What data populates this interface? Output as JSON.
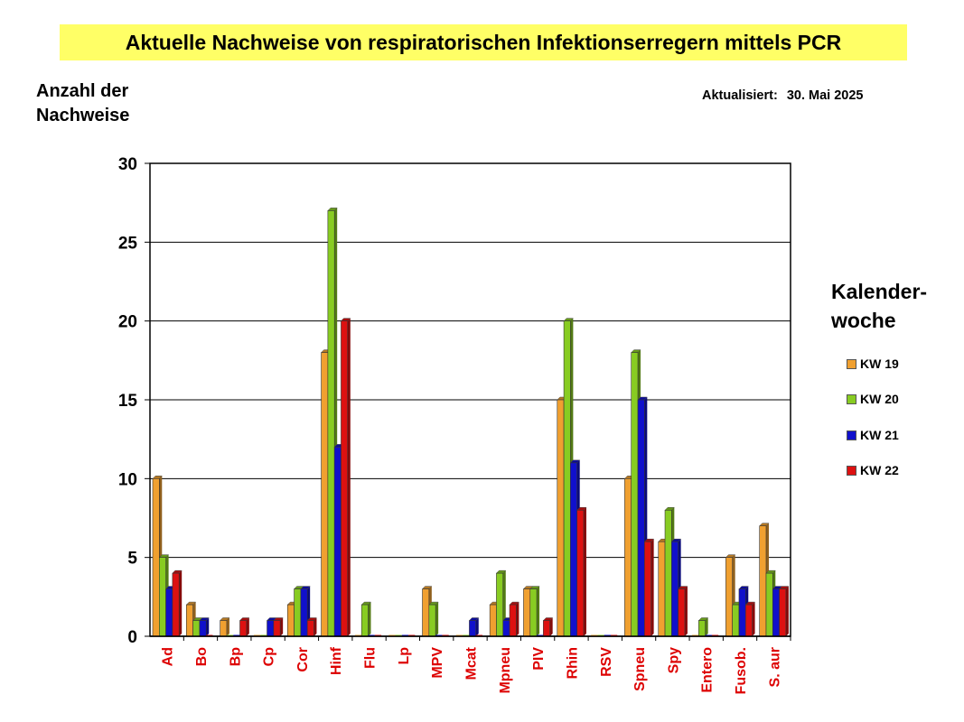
{
  "title": "Aktuelle Nachweise von respiratorischen Infektionserregern mittels PCR",
  "ylabel_line1": "Anzahl der",
  "ylabel_line2": "Nachweise",
  "updated_label": "Aktualisiert:",
  "updated_date": "30. Mai 2025",
  "legend_title_line1": "Kalender-",
  "legend_title_line2": "woche",
  "colors": {
    "KW 19": "#f0a030",
    "KW 20": "#88cc22",
    "KW 21": "#1010cc",
    "KW 22": "#dd1111",
    "category_labels": "#dd0000"
  },
  "chart_data": {
    "type": "bar",
    "categories": [
      "Ad",
      "Bo",
      "Bp",
      "Cp",
      "Cor",
      "Hinf",
      "Flu",
      "Lp",
      "MPV",
      "Mcat",
      "Mpneu",
      "PIV",
      "Rhin",
      "RSV",
      "Spneu",
      "Spy",
      "Entero",
      "Fusob.",
      "S. aur"
    ],
    "series": [
      {
        "name": "KW 19",
        "values": [
          10,
          2,
          1,
          0,
          2,
          18,
          0,
          0,
          3,
          0,
          2,
          3,
          15,
          0,
          10,
          6,
          0,
          5,
          7
        ]
      },
      {
        "name": "KW 20",
        "values": [
          5,
          1,
          0,
          0,
          3,
          27,
          2,
          0,
          2,
          0,
          4,
          3,
          20,
          0,
          18,
          8,
          1,
          2,
          4
        ]
      },
      {
        "name": "KW 21",
        "values": [
          3,
          1,
          0,
          1,
          3,
          12,
          0,
          0,
          0,
          1,
          1,
          0,
          11,
          0,
          15,
          6,
          0,
          3,
          3
        ]
      },
      {
        "name": "KW 22",
        "values": [
          4,
          0,
          1,
          1,
          1,
          20,
          0,
          0,
          0,
          0,
          2,
          1,
          8,
          0,
          6,
          3,
          0,
          2,
          3
        ]
      }
    ],
    "yticks": [
      "0",
      "5",
      "10",
      "15",
      "20",
      "25",
      "30"
    ],
    "ylim": [
      0,
      30
    ],
    "grid": true,
    "legend_position": "right"
  }
}
